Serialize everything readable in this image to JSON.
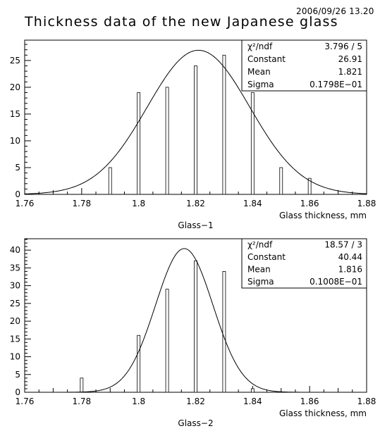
{
  "stamp": "2006/09/26   13.20",
  "title": "Thickness data of the new Japanese glass",
  "chart_data": [
    {
      "type": "bar",
      "name": "Glass−1",
      "xlabel": "Glass thickness, mm",
      "xlim": [
        1.76,
        1.88
      ],
      "ylim": [
        0,
        28.8
      ],
      "xticks": [
        "1.76",
        "1.78",
        "1.8",
        "1.82",
        "1.84",
        "1.86",
        "1.88"
      ],
      "yticks": [
        "0",
        "5",
        "10",
        "15",
        "20",
        "25"
      ],
      "x": [
        1.79,
        1.8,
        1.81,
        1.82,
        1.83,
        1.84,
        1.85,
        1.86
      ],
      "values": [
        5,
        19,
        20,
        24,
        26,
        19,
        5,
        3
      ],
      "fit": {
        "type": "gaussian",
        "constant": 26.91,
        "mean": 1.821,
        "sigma": 0.01798
      },
      "stats": [
        {
          "label": "χ²/ndf",
          "value": "3.796   /   5"
        },
        {
          "label": "Constant",
          "value": "26.91"
        },
        {
          "label": "Mean",
          "value": "1.821"
        },
        {
          "label": "Sigma",
          "value": "0.1798E−01"
        }
      ],
      "legend": "top-right"
    },
    {
      "type": "bar",
      "name": "Glass−2",
      "xlabel": "Glass thickness, mm",
      "xlim": [
        1.76,
        1.88
      ],
      "ylim": [
        0,
        43.2
      ],
      "xticks": [
        "1.76",
        "1.78",
        "1.8",
        "1.82",
        "1.84",
        "1.86",
        "1.88"
      ],
      "yticks": [
        "0",
        "5",
        "10",
        "15",
        "20",
        "25",
        "30",
        "35",
        "40"
      ],
      "x": [
        1.78,
        1.8,
        1.81,
        1.82,
        1.83,
        1.84
      ],
      "values": [
        4,
        16,
        29,
        37,
        34,
        1
      ],
      "fit": {
        "type": "gaussian",
        "constant": 40.44,
        "mean": 1.816,
        "sigma": 0.01008
      },
      "stats": [
        {
          "label": "χ²/ndf",
          "value": "18.57   /   3"
        },
        {
          "label": "Constant",
          "value": "40.44"
        },
        {
          "label": "Mean",
          "value": "1.816"
        },
        {
          "label": "Sigma",
          "value": "0.1008E−01"
        }
      ],
      "legend": "top-right"
    }
  ]
}
